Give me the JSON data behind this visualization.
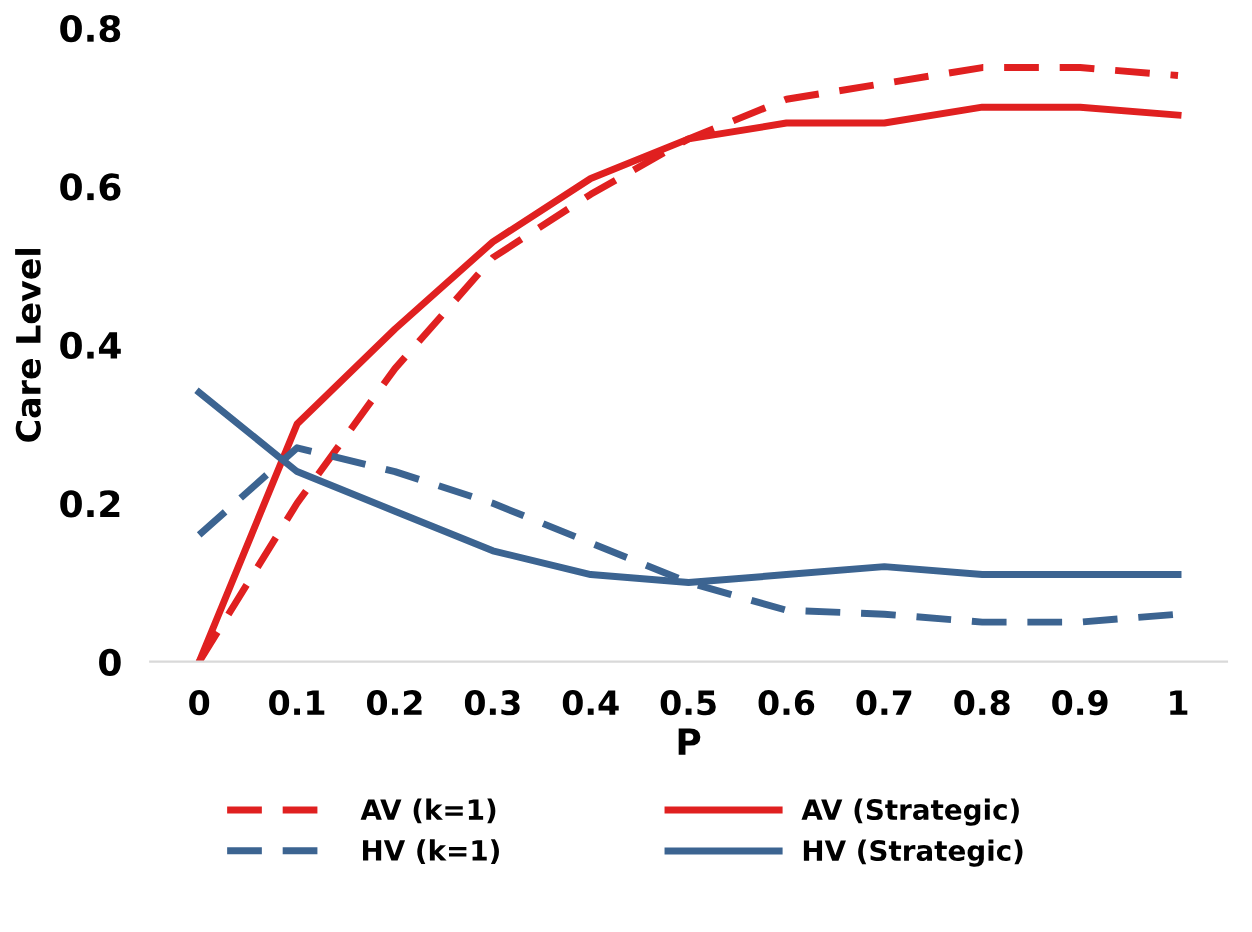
{
  "chart_data": {
    "type": "line",
    "xlabel": "P",
    "ylabel": "Care Level",
    "categories": [
      "0",
      "0.1",
      "0.2",
      "0.3",
      "0.4",
      "0.5",
      "0.6",
      "0.7",
      "0.8",
      "0.9",
      "1"
    ],
    "series": [
      {
        "name": "AV (k=1)",
        "color": "#e02020",
        "line_style": "dashed",
        "values": [
          0,
          0.2,
          0.37,
          0.51,
          0.59,
          0.66,
          0.71,
          0.73,
          0.75,
          0.75,
          0.74
        ]
      },
      {
        "name": "AV (Strategic)",
        "color": "#e02020",
        "line_style": "solid",
        "values": [
          0,
          0.3,
          0.42,
          0.53,
          0.61,
          0.66,
          0.68,
          0.68,
          0.7,
          0.7,
          0.69
        ]
      },
      {
        "name": "HV (k=1)",
        "color": "#3c6491",
        "line_style": "dashed",
        "values": [
          0.16,
          0.27,
          0.24,
          0.2,
          0.15,
          0.1,
          0.065,
          0.06,
          0.05,
          0.05,
          0.06
        ]
      },
      {
        "name": "HV (Strategic)",
        "color": "#3c6491",
        "line_style": "solid",
        "values": [
          0.34,
          0.24,
          0.19,
          0.14,
          0.11,
          0.1,
          0.11,
          0.12,
          0.11,
          0.11,
          0.11
        ]
      }
    ],
    "ylim": [
      0,
      0.8
    ],
    "yticks": [
      0,
      0.2,
      0.4,
      0.6,
      0.8
    ],
    "grid": false,
    "legend": "bottom"
  }
}
